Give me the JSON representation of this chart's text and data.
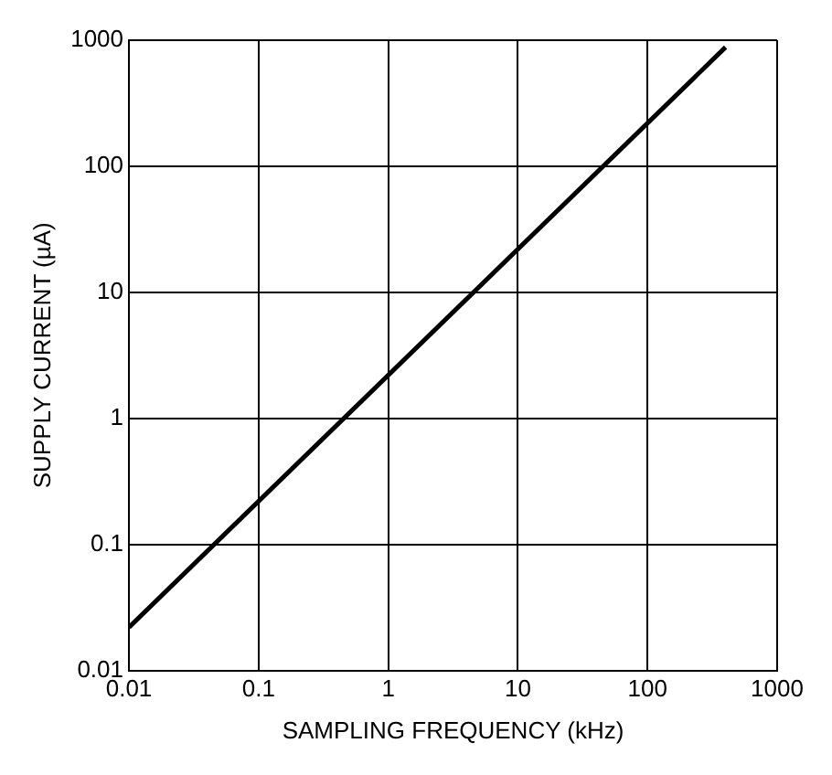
{
  "chart_data": {
    "type": "line",
    "xlabel": "SAMPLING FREQUENCY (kHz)",
    "ylabel": "SUPPLY CURRENT (µA)",
    "log": "xy",
    "grid": true,
    "marker": "none",
    "line_style": "solid",
    "xlim": [
      0.01,
      1000
    ],
    "ylim": [
      0.01,
      1000
    ],
    "xticks": [
      0.01,
      0.1,
      1,
      10,
      100,
      1000
    ],
    "yticks": [
      0.01,
      0.1,
      1,
      10,
      100,
      1000
    ],
    "series": [
      {
        "color": "#000000",
        "x": [
          0.01,
          400
        ],
        "values": [
          0.022,
          880
        ]
      }
    ]
  }
}
